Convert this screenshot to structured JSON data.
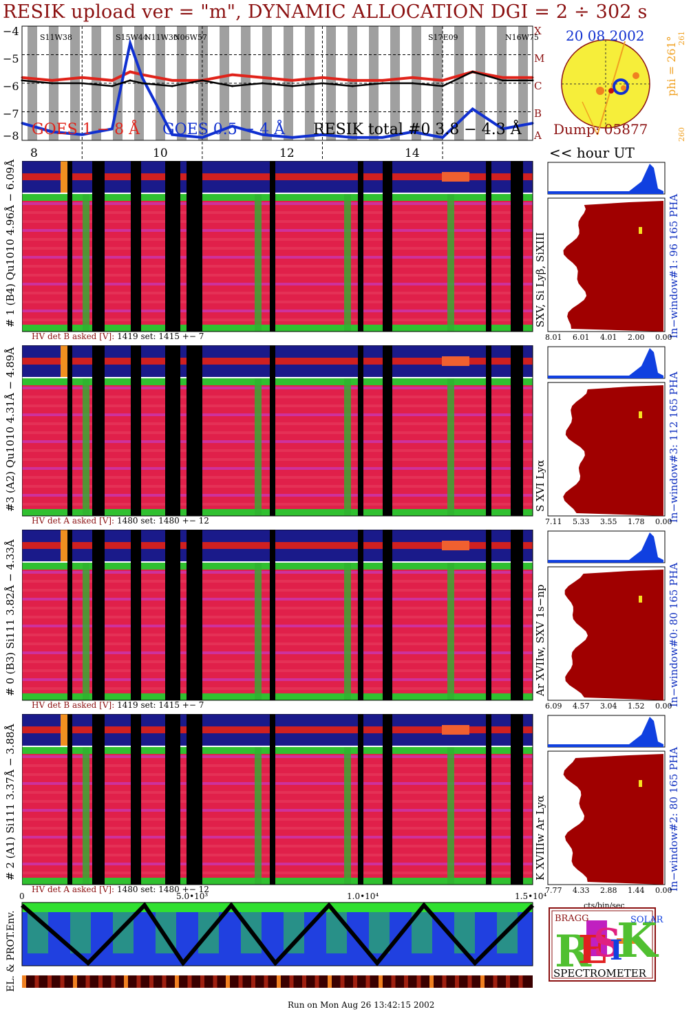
{
  "title": "RESIK upload ver = \"m\", DYNAMIC ALLOCATION  DGI =   2 ÷ 302 s",
  "goes": {
    "y_ticks": [
      "−4",
      "−5",
      "−6",
      "−7",
      "−8"
    ],
    "class_labels": [
      "X",
      "M",
      "C",
      "B",
      "A"
    ],
    "legend_goes_long": "GOES 1 − 8 Å",
    "legend_goes_short": "GOES 0.5 − 4 Å",
    "legend_resik": "RESIK total #0  3.8 − 4.3 Å",
    "flare_tags": [
      "S11W38",
      "S15W44",
      "N11W30",
      "N06W57",
      "S17E09",
      "N16W75"
    ],
    "x_ticks": [
      "8",
      "10",
      "12",
      "14"
    ],
    "x_unit": "<< hour UT"
  },
  "sun": {
    "date": "20 08 2002",
    "phi": "phi = 261°",
    "phi_small": "261",
    "phi_bottom": "260",
    "dump": "Dump: 05877"
  },
  "channels": [
    {
      "left_label": "# 1 (B4) Qu1010 4.96Å − 6.09Å",
      "line_label": "SXV, Si Lyβ, SiXIII",
      "window": "In−window#1:   96 165  PHA",
      "hv": {
        "label": "HV det B asked [V]:",
        "asked": "1419",
        "set_label": "set:",
        "set": "1415",
        "pm": "+−",
        "dev": "7"
      },
      "x_ticks": [
        "8.01",
        "6.01",
        "4.01",
        "2.00",
        "0.00"
      ]
    },
    {
      "left_label": "#3 (A2) Qu1010  4.31Å − 4.89Å",
      "line_label": "S XVI Lyα",
      "window": "In−window#3:   112 165  PHA",
      "hv": {
        "label": "HV det A asked [V]:",
        "asked": "1480",
        "set_label": "set:",
        "set": "1480",
        "pm": "+−",
        "dev": "12"
      },
      "x_ticks": [
        "7.11",
        "5.33",
        "3.55",
        "1.78",
        "0.00"
      ]
    },
    {
      "left_label": "# 0 (B3) Si111  3.82Å − 4.33Å",
      "line_label": "Ar XVIIw,  SXV 1s−np",
      "window": "In−window#0:   80 165  PHA",
      "hv": {
        "label": "HV det B asked [V]:",
        "asked": "1419",
        "set_label": "set:",
        "set": "1415",
        "pm": "+−",
        "dev": "7"
      },
      "x_ticks": [
        "6.09",
        "4.57",
        "3.04",
        "1.52",
        "0.00"
      ]
    },
    {
      "left_label": "# 2 (A1) Si111  3.37Å − 3.88Å",
      "line_label": "K XVIIIw  Ar Lyα",
      "window": "In−window#2:   80 165  PHA",
      "hv": {
        "label": "HV det A asked [V]:",
        "asked": "1480",
        "set_label": "set:",
        "set": "1480",
        "pm": "+−",
        "dev": "12"
      },
      "x_ticks": [
        "7.77",
        "4.33",
        "2.88",
        "1.44",
        "0.00"
      ]
    }
  ],
  "spectrum_xlabel": "cts/bin/sec",
  "env": {
    "x_ticks": [
      "0",
      "5.0•10³",
      "1.0•10⁴",
      "1.5•10⁴"
    ],
    "label": "EL. & PROT.Env."
  },
  "logo": {
    "letters_r": "R",
    "letters_e": "E",
    "letters_s": "S",
    "letters_i": "I",
    "letters_k": "K",
    "bragg": "BRAGG",
    "solar": "SOLAR",
    "spectrometer": "SPECTROMETER"
  },
  "footer": "Run on Mon Aug 26 13:42:15 2002",
  "colors": {
    "title": "#8b1010",
    "goes_long": "#e0231a",
    "goes_short": "#1030d0",
    "resik": "#000000",
    "sun_disk": "#f6ee3a",
    "histogram": "#a00000",
    "pha": "#1040e0",
    "window_label": "#1030c0"
  },
  "chart_data": [
    {
      "type": "line",
      "ylim": [
        -8,
        -4
      ],
      "xlim": [
        7,
        15.5
      ],
      "x": [
        7.0,
        7.5,
        8.0,
        8.5,
        8.8,
        9.0,
        9.5,
        10.0,
        10.5,
        11.0,
        11.5,
        12.0,
        12.5,
        13.0,
        13.5,
        14.0,
        14.5,
        15.0,
        15.5
      ],
      "series": [
        {
          "name": "GOES 1 − 8 Å",
          "values": [
            -5.8,
            -5.9,
            -5.8,
            -5.9,
            -5.6,
            -5.7,
            -5.9,
            -5.9,
            -5.7,
            -5.8,
            -5.9,
            -5.8,
            -5.9,
            -5.9,
            -5.8,
            -5.9,
            -5.6,
            -5.8,
            -5.8
          ]
        },
        {
          "name": "GOES 0.5 − 4 Å",
          "values": [
            -7.4,
            -7.7,
            -7.8,
            -7.6,
            -4.6,
            -5.8,
            -7.8,
            -7.9,
            -7.5,
            -7.8,
            -7.9,
            -7.8,
            -7.9,
            -7.9,
            -7.7,
            -7.9,
            -6.9,
            -7.6,
            -7.4
          ]
        },
        {
          "name": "RESIK total #0  3.8 − 4.3 Å",
          "values": [
            -5.9,
            -6.0,
            -6.0,
            -6.1,
            -5.9,
            -6.0,
            -6.1,
            -5.9,
            -6.1,
            -6.0,
            -6.1,
            -6.0,
            -6.1,
            -6.0,
            -6.0,
            -6.1,
            -5.6,
            -5.9,
            -5.9
          ]
        }
      ]
    }
  ]
}
